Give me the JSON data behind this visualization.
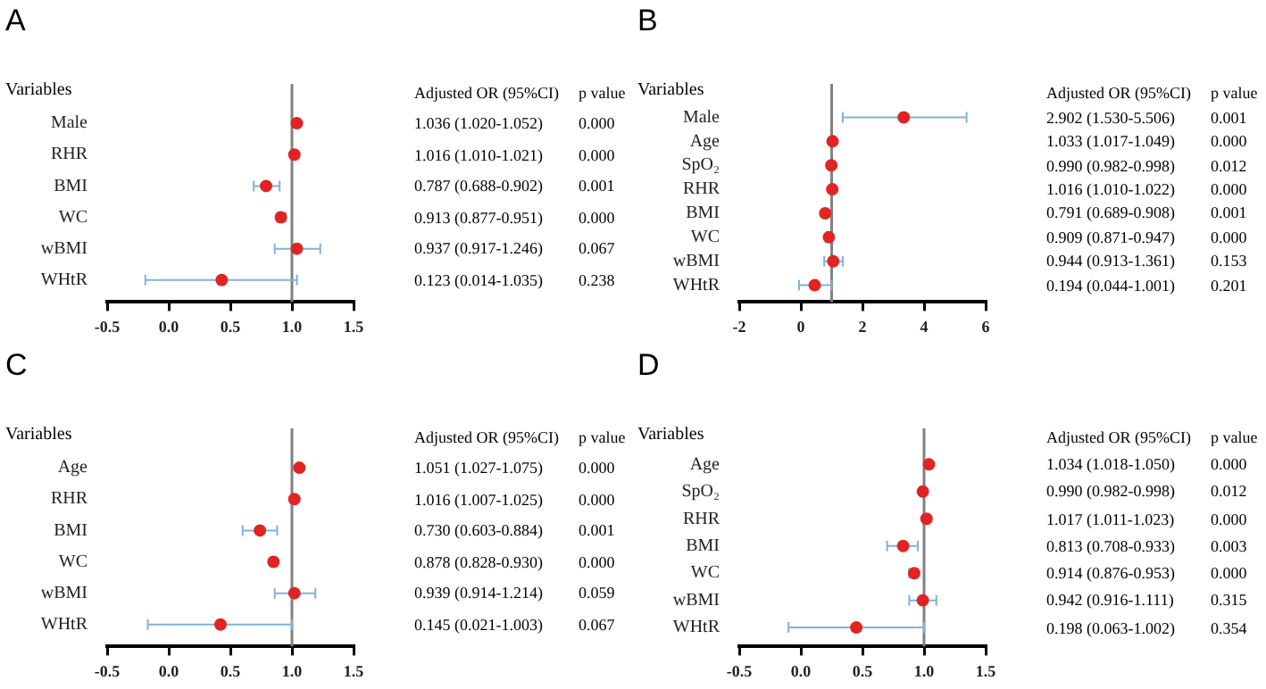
{
  "chart_data": [
    {
      "type": "scatter",
      "title": "A",
      "ylabel": "Variables",
      "orientation": "horizontal",
      "categories": [
        "Male",
        "RHR",
        "BMI",
        "WC",
        "wBMI",
        "WHtR"
      ],
      "values": [
        1.04,
        1.02,
        0.79,
        0.91,
        1.04,
        0.43
      ],
      "errors": [
        [
          1.02,
          1.05
        ],
        [
          1.01,
          1.02
        ],
        [
          0.69,
          0.9
        ],
        [
          0.88,
          0.95
        ],
        [
          0.86,
          1.23
        ],
        [
          -0.19,
          1.04
        ]
      ],
      "color": "#e02424",
      "marker": "circle",
      "xlim": [
        -0.5,
        1.5
      ],
      "xticks": [
        {
          "value": -0.5,
          "label": "-0.5"
        },
        {
          "value": 0,
          "label": "0.0"
        },
        {
          "value": 0.5,
          "label": "0.5"
        },
        {
          "value": 1,
          "label": "1.0"
        },
        {
          "value": 1.5,
          "label": "1.5"
        }
      ],
      "ref_lines": [
        {
          "axis": "x",
          "value": 1,
          "color": "#808080"
        }
      ],
      "grid": false,
      "legend": false,
      "annotations": [
        "Adjusted OR (95%CI)",
        "p value",
        "1.036 (1.020-1.052)",
        "0.000",
        "1.016 (1.010-1.021)",
        "0.000",
        "0.787 (0.688-0.902)",
        "0.001",
        "0.913 (0.877-0.951)",
        "0.000",
        "0.937 (0.917-1.246)",
        "0.067",
        "0.123 (0.014-1.035)",
        "0.238"
      ]
    },
    {
      "type": "scatter",
      "title": "B",
      "ylabel": "Variables",
      "orientation": "horizontal",
      "categories": [
        "Male",
        "Age",
        "SpO₂",
        "RHR",
        "BMI",
        "WC",
        "wBMI",
        "WHtR"
      ],
      "values": [
        3.34,
        1.03,
        0.99,
        1.02,
        0.79,
        0.91,
        1.05,
        0.45
      ],
      "errors": [
        [
          1.36,
          5.38
        ],
        null,
        null,
        null,
        null,
        null,
        [
          0.76,
          1.36
        ],
        [
          -0.06,
          1.0
        ]
      ],
      "color": "#e02424",
      "marker": "circle",
      "xlim": [
        -2,
        6
      ],
      "xticks": [
        -2,
        0,
        2,
        4,
        6
      ],
      "ref_lines": [
        {
          "axis": "x",
          "value": 1,
          "color": "#808080"
        }
      ],
      "grid": false,
      "legend": false,
      "annotations": [
        "Adjusted OR (95%CI)",
        "p value",
        "2.902 (1.530-5.506)",
        "0.001",
        "1.033 (1.017-1.049)",
        "0.000",
        "0.990 (0.982-0.998)",
        "0.012",
        "1.016 (1.010-1.022)",
        "0.000",
        "0.791 (0.689-0.908)",
        "0.001",
        "0.909 (0.871-0.947)",
        "0.000",
        "0.944 (0.913-1.361)",
        "0.153",
        "0.194 (0.044-1.001)",
        "0.201"
      ]
    },
    {
      "type": "scatter",
      "title": "C",
      "ylabel": "Variables",
      "orientation": "horizontal",
      "categories": [
        "Age",
        "RHR",
        "BMI",
        "WC",
        "wBMI",
        "WHtR"
      ],
      "values": [
        1.06,
        1.02,
        0.74,
        0.85,
        1.02,
        0.42
      ],
      "errors": [
        null,
        null,
        [
          0.6,
          0.88
        ],
        [
          0.83,
          0.87
        ],
        [
          0.86,
          1.19
        ],
        [
          -0.17,
          1.0
        ]
      ],
      "color": "#e02424",
      "marker": "circle",
      "xlim": [
        -0.5,
        1.5
      ],
      "xticks": [
        {
          "value": -0.5,
          "label": "-0.5"
        },
        {
          "value": 0,
          "label": "0.0"
        },
        {
          "value": 0.5,
          "label": "0.5"
        },
        {
          "value": 1,
          "label": "1.0"
        },
        {
          "value": 1.5,
          "label": "1.5"
        }
      ],
      "ref_lines": [
        {
          "axis": "x",
          "value": 1,
          "color": "#808080"
        }
      ],
      "grid": false,
      "legend": false,
      "annotations": [
        "Adjusted OR (95%CI)",
        "p value",
        "1.051 (1.027-1.075)",
        "0.000",
        "1.016 (1.007-1.025)",
        "0.000",
        "0.730 (0.603-0.884)",
        "0.001",
        "0.878 (0.828-0.930)",
        "0.000",
        "0.939 (0.914-1.214)",
        "0.059",
        "0.145 (0.021-1.003)",
        "0.067"
      ]
    },
    {
      "type": "scatter",
      "title": "D",
      "ylabel": "Variables",
      "orientation": "horizontal",
      "categories": [
        "Age",
        "SpO₂",
        "RHR",
        "BMI",
        "WC",
        "wBMI",
        "WHtR"
      ],
      "values": [
        1.04,
        0.99,
        1.02,
        0.83,
        0.92,
        0.99,
        0.45
      ],
      "errors": [
        null,
        null,
        null,
        [
          0.7,
          0.95
        ],
        [
          0.88,
          0.95
        ],
        [
          0.88,
          1.1
        ],
        [
          -0.1,
          1.0
        ]
      ],
      "color": "#e02424",
      "marker": "circle",
      "xlim": [
        -0.5,
        1.5
      ],
      "xticks": [
        {
          "value": -0.5,
          "label": "-0.5"
        },
        {
          "value": 0,
          "label": "0.0"
        },
        {
          "value": 0.5,
          "label": "0.5"
        },
        {
          "value": 1,
          "label": "1.0"
        },
        {
          "value": 1.5,
          "label": "1.5"
        }
      ],
      "ref_lines": [
        {
          "axis": "x",
          "value": 1,
          "color": "#808080"
        }
      ],
      "grid": false,
      "legend": false,
      "annotations": [
        "Adjusted OR (95%CI)",
        "p value",
        "1.034 (1.018-1.050)",
        "0.000",
        "0.990 (0.982-0.998)",
        "0.012",
        "1.017 (1.011-1.023)",
        "0.000",
        "0.813 (0.708-0.933)",
        "0.003",
        "0.914 (0.876-0.953)",
        "0.000",
        "0.942 (0.916-1.111)",
        "0.315",
        "0.198 (0.063-1.002)",
        "0.354"
      ]
    }
  ]
}
